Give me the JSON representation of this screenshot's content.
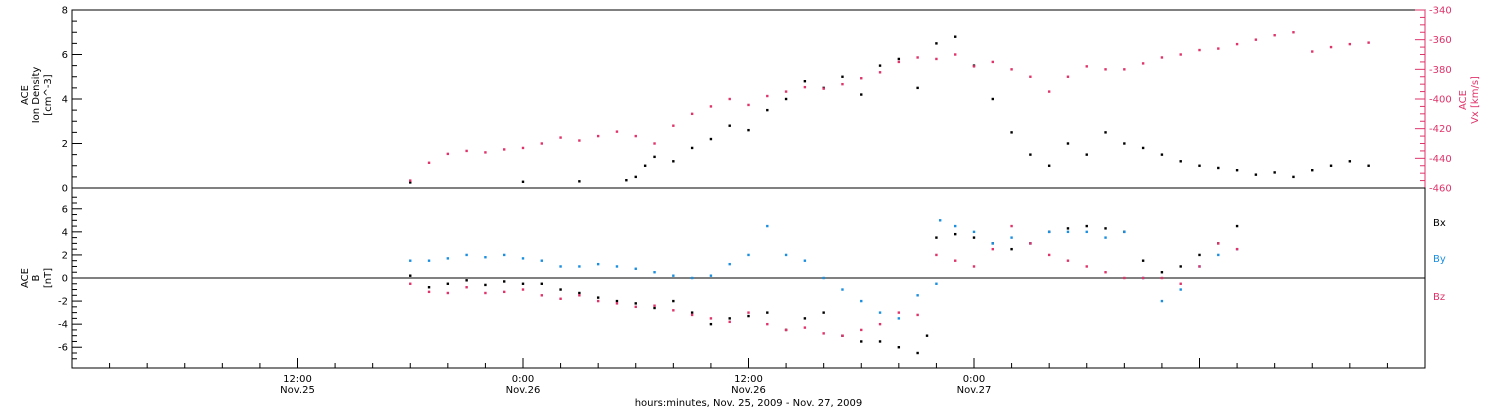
{
  "chart_data": [
    {
      "type": "scatter",
      "panel": "top",
      "ylabel_left": [
        "ACE",
        "Ion Density",
        "[cm^-3]"
      ],
      "ylabel_right": [
        "ACE",
        "Vx [km/s]"
      ],
      "ylim_left": [
        0,
        8
      ],
      "yticks_left": [
        "0",
        "2",
        "4",
        "6",
        "8"
      ],
      "ylim_right": [
        -460,
        -340
      ],
      "yticks_right": [
        "-460",
        "-440",
        "-420",
        "-400",
        "-380",
        "-360",
        "-340"
      ],
      "colors": {
        "density": "#000000",
        "vx": "#e0336a"
      },
      "series": [
        {
          "axis": "left",
          "color": "#000000",
          "points": [
            [
              18,
              0.25
            ],
            [
              24,
              0.28
            ],
            [
              27,
              0.3
            ],
            [
              29.5,
              0.35
            ],
            [
              30,
              0.5
            ],
            [
              30.5,
              1.0
            ],
            [
              31,
              1.4
            ],
            [
              32,
              1.2
            ],
            [
              33,
              1.8
            ],
            [
              34,
              2.2
            ],
            [
              35,
              2.8
            ],
            [
              36,
              2.6
            ],
            [
              37,
              3.5
            ],
            [
              38,
              4.0
            ],
            [
              39,
              4.8
            ],
            [
              40,
              4.5
            ],
            [
              41,
              5.0
            ],
            [
              42,
              4.2
            ],
            [
              43,
              5.5
            ],
            [
              44,
              5.8
            ],
            [
              45,
              4.5
            ],
            [
              46,
              6.5
            ],
            [
              47,
              6.8
            ],
            [
              48,
              5.5
            ],
            [
              49,
              4.0
            ],
            [
              50,
              2.5
            ],
            [
              51,
              1.5
            ],
            [
              52,
              1.0
            ],
            [
              53,
              2.0
            ],
            [
              54,
              1.5
            ],
            [
              55,
              2.5
            ],
            [
              56,
              2.0
            ],
            [
              57,
              1.8
            ],
            [
              58,
              1.5
            ],
            [
              59,
              1.2
            ],
            [
              60,
              1.0
            ],
            [
              61,
              0.9
            ],
            [
              62,
              0.8
            ],
            [
              63,
              0.6
            ],
            [
              64,
              0.7
            ],
            [
              65,
              0.5
            ],
            [
              66,
              0.8
            ],
            [
              67,
              1.0
            ],
            [
              68,
              1.2
            ],
            [
              69,
              1.0
            ]
          ]
        },
        {
          "axis": "right",
          "color": "#e0336a",
          "points": [
            [
              18,
              -455
            ],
            [
              19,
              -443
            ],
            [
              20,
              -437
            ],
            [
              21,
              -435
            ],
            [
              22,
              -436
            ],
            [
              23,
              -434
            ],
            [
              24,
              -433
            ],
            [
              25,
              -430
            ],
            [
              26,
              -426
            ],
            [
              27,
              -428
            ],
            [
              28,
              -425
            ],
            [
              29,
              -422
            ],
            [
              30,
              -425
            ],
            [
              31,
              -430
            ],
            [
              32,
              -418
            ],
            [
              33,
              -410
            ],
            [
              34,
              -405
            ],
            [
              35,
              -400
            ],
            [
              36,
              -404
            ],
            [
              37,
              -398
            ],
            [
              38,
              -395
            ],
            [
              39,
              -392
            ],
            [
              40,
              -393
            ],
            [
              41,
              -390
            ],
            [
              42,
              -386
            ],
            [
              43,
              -382
            ],
            [
              44,
              -375
            ],
            [
              45,
              -372
            ],
            [
              46,
              -373
            ],
            [
              47,
              -370
            ],
            [
              48,
              -378
            ],
            [
              49,
              -375
            ],
            [
              50,
              -380
            ],
            [
              51,
              -385
            ],
            [
              52,
              -395
            ],
            [
              53,
              -385
            ],
            [
              54,
              -378
            ],
            [
              55,
              -380
            ],
            [
              56,
              -380
            ],
            [
              57,
              -376
            ],
            [
              58,
              -372
            ],
            [
              59,
              -370
            ],
            [
              60,
              -367
            ],
            [
              61,
              -366
            ],
            [
              62,
              -363
            ],
            [
              63,
              -360
            ],
            [
              64,
              -357
            ],
            [
              65,
              -355
            ],
            [
              66,
              -368
            ],
            [
              67,
              -365
            ],
            [
              68,
              -363
            ],
            [
              69,
              -362
            ]
          ]
        }
      ]
    },
    {
      "type": "scatter",
      "panel": "bottom",
      "ylabel_left": [
        "ACE",
        "B",
        "[nT]"
      ],
      "ylim": [
        -7.8,
        7.8
      ],
      "yticks": [
        "-6",
        "-4",
        "-2",
        "0",
        "2",
        "4",
        "6"
      ],
      "zero_line": true,
      "x_axis": {
        "range_hours": [
          0,
          72
        ],
        "tick_labels": [
          {
            "hour": 12,
            "time": "12:00",
            "date": "Nov.25"
          },
          {
            "hour": 24,
            "time": "0:00",
            "date": "Nov.26"
          },
          {
            "hour": 36,
            "time": "12:00",
            "date": "Nov.26"
          },
          {
            "hour": 48,
            "time": "0:00",
            "date": "Nov.27"
          }
        ],
        "xlabel": "hours:minutes, Nov. 25, 2009 - Nov. 27, 2009"
      },
      "series": [
        {
          "name": "Bx",
          "color": "#000000",
          "points": [
            [
              18,
              0.2
            ],
            [
              19,
              -0.8
            ],
            [
              20,
              -0.5
            ],
            [
              21,
              -0.2
            ],
            [
              22,
              -0.6
            ],
            [
              23,
              -0.3
            ],
            [
              24,
              -0.5
            ],
            [
              25,
              -0.5
            ],
            [
              26,
              -1.0
            ],
            [
              27,
              -1.3
            ],
            [
              28,
              -1.7
            ],
            [
              29,
              -2.0
            ],
            [
              30,
              -2.2
            ],
            [
              31,
              -2.6
            ],
            [
              32,
              -2.0
            ],
            [
              33,
              -3.0
            ],
            [
              34,
              -4.0
            ],
            [
              35,
              -3.5
            ],
            [
              36,
              -3.3
            ],
            [
              37,
              -3.0
            ],
            [
              38,
              -4.5
            ],
            [
              39,
              -3.5
            ],
            [
              40,
              -3.0
            ],
            [
              41,
              -5.0
            ],
            [
              42,
              -5.5
            ],
            [
              43,
              -5.5
            ],
            [
              44,
              -6.0
            ],
            [
              45,
              -6.5
            ],
            [
              45.5,
              -5.0
            ],
            [
              46,
              3.5
            ],
            [
              47,
              3.8
            ],
            [
              48,
              3.5
            ],
            [
              49,
              3.0
            ],
            [
              50,
              2.5
            ],
            [
              51,
              3.0
            ],
            [
              52,
              4.0
            ],
            [
              53,
              4.3
            ],
            [
              54,
              4.5
            ],
            [
              55,
              4.3
            ],
            [
              56,
              4.0
            ],
            [
              57,
              1.5
            ],
            [
              58,
              0.5
            ],
            [
              59,
              1.0
            ],
            [
              60,
              2.0
            ],
            [
              61,
              3.0
            ],
            [
              62,
              4.5
            ]
          ]
        },
        {
          "name": "By",
          "color": "#1a8fe0",
          "points": [
            [
              18,
              1.5
            ],
            [
              19,
              1.5
            ],
            [
              20,
              1.7
            ],
            [
              21,
              2.0
            ],
            [
              22,
              1.8
            ],
            [
              23,
              2.0
            ],
            [
              24,
              1.7
            ],
            [
              25,
              1.5
            ],
            [
              26,
              1.0
            ],
            [
              27,
              1.0
            ],
            [
              28,
              1.2
            ],
            [
              29,
              1.0
            ],
            [
              30,
              0.8
            ],
            [
              31,
              0.5
            ],
            [
              32,
              0.2
            ],
            [
              33,
              0.0
            ],
            [
              34,
              0.2
            ],
            [
              35,
              1.2
            ],
            [
              36,
              2.0
            ],
            [
              37,
              4.5
            ],
            [
              38,
              2.0
            ],
            [
              39,
              1.5
            ],
            [
              40,
              0.0
            ],
            [
              41,
              -1.0
            ],
            [
              42,
              -2.0
            ],
            [
              43,
              -3.0
            ],
            [
              44,
              -3.5
            ],
            [
              45,
              -1.5
            ],
            [
              46,
              -0.5
            ],
            [
              46.2,
              5.0
            ],
            [
              47,
              4.5
            ],
            [
              48,
              4.0
            ],
            [
              49,
              3.0
            ],
            [
              50,
              3.5
            ],
            [
              51,
              3.0
            ],
            [
              52,
              4.0
            ],
            [
              53,
              4.0
            ],
            [
              54,
              4.0
            ],
            [
              55,
              3.5
            ],
            [
              56,
              4.0
            ],
            [
              57,
              0.0
            ],
            [
              58,
              -2.0
            ],
            [
              59,
              -1.0
            ],
            [
              60,
              1.0
            ],
            [
              61,
              2.0
            ],
            [
              62,
              2.5
            ]
          ]
        },
        {
          "name": "Bz",
          "color": "#e0336a",
          "points": [
            [
              18,
              -0.5
            ],
            [
              19,
              -1.2
            ],
            [
              20,
              -1.3
            ],
            [
              21,
              -0.8
            ],
            [
              22,
              -1.3
            ],
            [
              23,
              -1.2
            ],
            [
              24,
              -1.0
            ],
            [
              25,
              -1.5
            ],
            [
              26,
              -1.8
            ],
            [
              27,
              -1.5
            ],
            [
              28,
              -2.0
            ],
            [
              29,
              -2.2
            ],
            [
              30,
              -2.5
            ],
            [
              31,
              -2.4
            ],
            [
              32,
              -2.8
            ],
            [
              33,
              -3.2
            ],
            [
              34,
              -3.5
            ],
            [
              35,
              -3.8
            ],
            [
              36,
              -3.0
            ],
            [
              37,
              -4.0
            ],
            [
              38,
              -4.5
            ],
            [
              39,
              -4.3
            ],
            [
              40,
              -4.8
            ],
            [
              41,
              -5.0
            ],
            [
              42,
              -4.5
            ],
            [
              43,
              -4.0
            ],
            [
              44,
              -3.0
            ],
            [
              45,
              -3.2
            ],
            [
              46,
              2.0
            ],
            [
              47,
              1.5
            ],
            [
              48,
              1.0
            ],
            [
              49,
              2.5
            ],
            [
              50,
              4.5
            ],
            [
              51,
              3.0
            ],
            [
              52,
              2.0
            ],
            [
              53,
              1.5
            ],
            [
              54,
              1.0
            ],
            [
              55,
              0.5
            ],
            [
              56,
              0.0
            ],
            [
              57,
              0.0
            ],
            [
              58,
              0.0
            ],
            [
              59,
              -0.5
            ],
            [
              60,
              1.0
            ],
            [
              61,
              3.0
            ],
            [
              62,
              2.5
            ]
          ]
        }
      ]
    }
  ]
}
